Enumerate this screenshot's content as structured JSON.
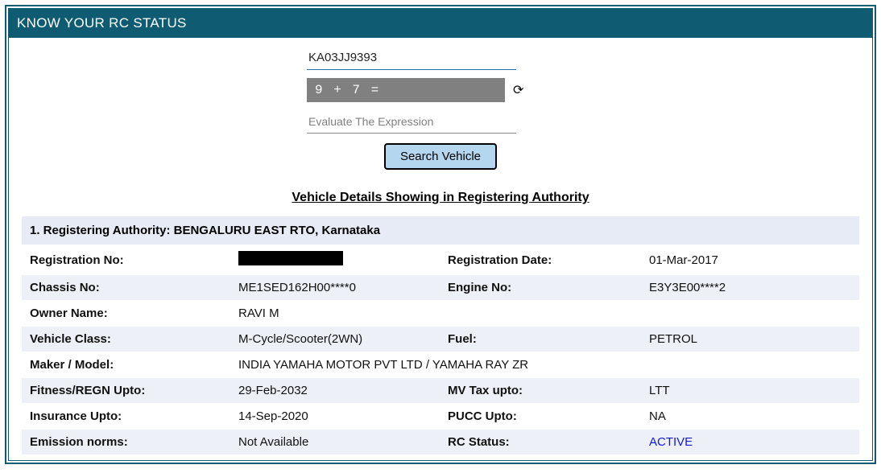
{
  "header": {
    "title": "KNOW YOUR RC STATUS"
  },
  "form": {
    "reg_value": "KA03JJ9393",
    "captcha_text": "9 + 7 =",
    "eval_placeholder": "Evaluate The Expression",
    "search_label": "Search Vehicle"
  },
  "section_title": "Vehicle Details Showing in Registering Authority",
  "authority": {
    "label": "1. Registering Authority: BENGALURU EAST RTO, Karnataka"
  },
  "rows": {
    "reg_no_label": "Registration No:",
    "reg_no_value": "",
    "reg_date_label": "Registration Date:",
    "reg_date_value": "01-Mar-2017",
    "chassis_label": "Chassis No:",
    "chassis_value": "ME1SED162H00****0",
    "engine_label": "Engine No:",
    "engine_value": "E3Y3E00****2",
    "owner_label": "Owner Name:",
    "owner_value": "RAVI M",
    "class_label": "Vehicle Class:",
    "class_value": "M-Cycle/Scooter(2WN)",
    "fuel_label": "Fuel:",
    "fuel_value": "PETROL",
    "maker_label": "Maker / Model:",
    "maker_value": "INDIA YAMAHA MOTOR PVT LTD / YAMAHA RAY ZR",
    "fitness_label": "Fitness/REGN Upto:",
    "fitness_value": "29-Feb-2032",
    "mvtax_label": "MV Tax upto:",
    "mvtax_value": "LTT",
    "insurance_label": "Insurance Upto:",
    "insurance_value": "14-Sep-2020",
    "pucc_label": "PUCC Upto:",
    "pucc_value": "NA",
    "emission_label": "Emission norms:",
    "emission_value": "Not Available",
    "status_label": "RC Status:",
    "status_value": "ACTIVE"
  },
  "colors": {
    "brand": "#0f5b72",
    "row_alt": "#edf0f7",
    "header_row": "#e6ebf5",
    "button_bg": "#b5d6ef",
    "status_active": "#1418d6",
    "captcha_bg": "#808080"
  }
}
